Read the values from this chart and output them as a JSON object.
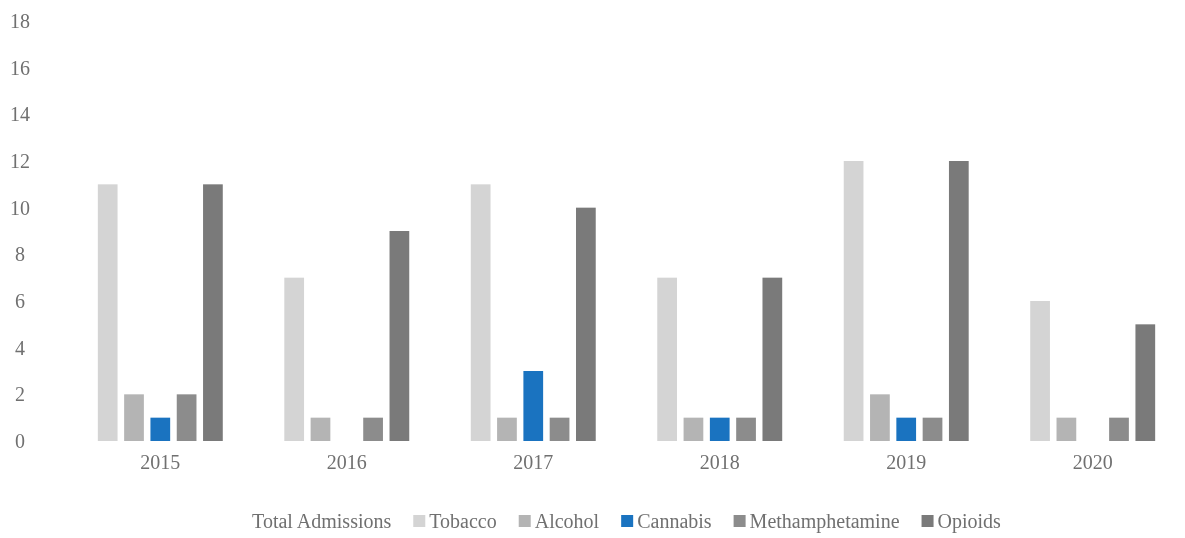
{
  "chart_data": {
    "type": "bar",
    "categories": [
      "2015",
      "2016",
      "2017",
      "2018",
      "2019",
      "2020"
    ],
    "series": [
      {
        "name": "Tobacco",
        "color": "#d4d4d4",
        "values": [
          11,
          7,
          11,
          7,
          12,
          6
        ]
      },
      {
        "name": "Alcohol",
        "color": "#b4b4b4",
        "values": [
          2,
          1,
          1,
          1,
          2,
          1
        ]
      },
      {
        "name": "Cannabis",
        "color": "#1a73c0",
        "values": [
          1,
          null,
          3,
          1,
          1,
          null
        ]
      },
      {
        "name": "Methamphetamine",
        "color": "#8c8c8c",
        "values": [
          2,
          1,
          1,
          1,
          1,
          1
        ]
      },
      {
        "name": "Opioids",
        "color": "#7a7a7a",
        "values": [
          11,
          9,
          10,
          7,
          12,
          5
        ]
      }
    ],
    "legend_title": "Total Admissions",
    "ylim": [
      0,
      18
    ],
    "yticks": [
      0,
      2,
      4,
      6,
      8,
      10,
      12,
      14,
      16,
      18
    ],
    "grid": false,
    "legend": "bottom"
  }
}
